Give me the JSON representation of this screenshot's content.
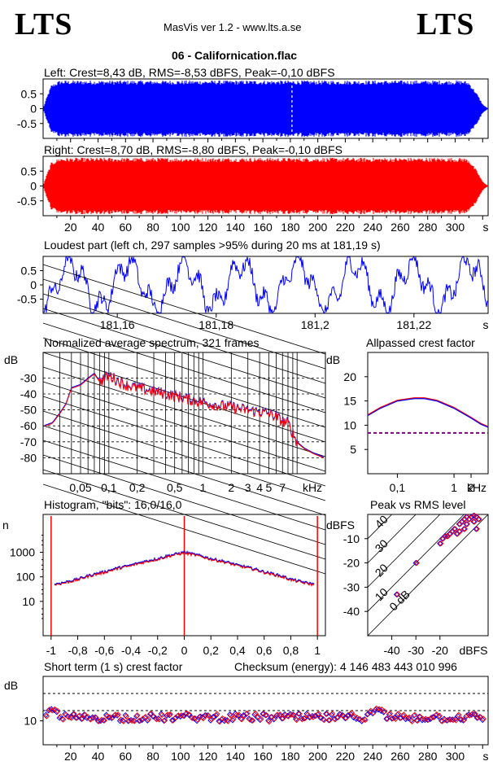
{
  "header": {
    "logo_left": "LTS",
    "logo_right": "LTS",
    "app_info": "MasVis ver 1.2 - www.lts.a.se",
    "track_title": "06 - Californication.flac"
  },
  "colors": {
    "left": "#0000ff",
    "right": "#ff0000",
    "axis": "#000000",
    "purple": "#800080"
  },
  "chart_data": [
    {
      "id": "left-waveform",
      "type": "area",
      "title": "Left: Crest=8,43 dB, RMS=-8,53 dBFS, Peak=-0,10 dBFS",
      "yticks": [
        "0.5",
        "0",
        "-0.5"
      ],
      "ylim": [
        -1,
        1
      ],
      "xlim": [
        0,
        324
      ],
      "duration_s": 324,
      "marker_s": 181.19,
      "envelope": {
        "x": [
          0,
          2,
          6,
          12,
          240,
          250,
          300,
          306,
          310,
          316,
          320,
          324
        ],
        "y": [
          0,
          0.3,
          0.8,
          0.95,
          0.95,
          0.95,
          0.95,
          0.95,
          0.9,
          0.5,
          0.15,
          0
        ]
      }
    },
    {
      "id": "right-waveform",
      "type": "area",
      "title": "Right: Crest=8,70 dB, RMS=-8,80 dBFS, Peak=-0,10 dBFS",
      "yticks": [
        "0.5",
        "0",
        "-0.5"
      ],
      "ylim": [
        -1,
        1
      ],
      "xlim": [
        0,
        324
      ],
      "xticks": [
        "20",
        "40",
        "60",
        "80",
        "100",
        "120",
        "140",
        "160",
        "180",
        "200",
        "220",
        "240",
        "260",
        "280",
        "300"
      ],
      "xunit": "s",
      "envelope": {
        "x": [
          0,
          2,
          6,
          12,
          240,
          250,
          300,
          306,
          310,
          316,
          320,
          324
        ],
        "y": [
          0,
          0.3,
          0.8,
          0.95,
          0.95,
          0.95,
          0.95,
          0.95,
          0.9,
          0.5,
          0.15,
          0
        ]
      }
    },
    {
      "id": "loudest-part",
      "type": "line",
      "title": "Loudest part (left  ch, 297 samples >95% during 20 ms at 181,19 s)",
      "yticks": [
        "0.5",
        "0",
        "-0.5"
      ],
      "ylim": [
        -1,
        1
      ],
      "xlim": [
        181.145,
        181.235
      ],
      "xticks": [
        "181,16",
        "181,18",
        "181,2",
        "181,22"
      ],
      "xunit": "s"
    },
    {
      "id": "spectrum",
      "type": "line",
      "title": "Normalized average spectrum, 321 frames",
      "ylabel": "dB",
      "yticks": [
        "-30",
        "-40",
        "-50",
        "-60",
        "-70",
        "-80"
      ],
      "xticks": [
        "0,05",
        "0,1",
        "0,2",
        "0,5",
        "1",
        "2",
        "3",
        "4",
        "5",
        "7"
      ],
      "xunit": "kHz",
      "ylim": [
        -90,
        -14
      ],
      "xlim": [
        0.02,
        20
      ],
      "series": [
        {
          "x": [
            0.02,
            0.025,
            0.03,
            0.035,
            0.04,
            0.05,
            0.06,
            0.07,
            0.08,
            0.1,
            0.12,
            0.15,
            0.2,
            0.3,
            0.5,
            0.7,
            1,
            1.5,
            2,
            3,
            4,
            5,
            6,
            7,
            8,
            10,
            12,
            15,
            20
          ],
          "y": [
            -60,
            -58,
            -52,
            -46,
            -36,
            -34,
            -30,
            -27,
            -32,
            -28,
            -31,
            -34,
            -36,
            -38,
            -41,
            -43,
            -45,
            -47,
            -48,
            -50,
            -51,
            -52,
            -54,
            -57,
            -58,
            -70,
            -74,
            -77,
            -80
          ]
        }
      ]
    },
    {
      "id": "crest-factor",
      "type": "line",
      "title": "Allpassed crest factor",
      "ylabel": "dB",
      "yticks": [
        "20",
        "15",
        "10",
        "5"
      ],
      "ylim": [
        0,
        25
      ],
      "xticks": [
        "0,1",
        "1",
        "2"
      ],
      "xunit": "kHz",
      "xlim": [
        0.03,
        4
      ],
      "reference_db": 8.4,
      "series": [
        {
          "x": [
            0.03,
            0.05,
            0.1,
            0.2,
            0.3,
            0.5,
            1,
            2,
            3,
            4
          ],
          "y": [
            12,
            13.5,
            15,
            15.5,
            15.5,
            15,
            13.5,
            11.5,
            10.2,
            9.6
          ]
        }
      ]
    },
    {
      "id": "histogram",
      "type": "line",
      "title": "Histogram, \"bits\": 16,0/16,0",
      "ylabel": "n",
      "yticks": [
        "1000",
        "100",
        "10"
      ],
      "xticks": [
        "-1",
        "-0,8",
        "-0,6",
        "-0,4",
        "-0,2",
        "0",
        "0,2",
        "0,4",
        "0,6",
        "0,8",
        "1"
      ],
      "xlim": [
        -1.06,
        1.06
      ],
      "series": [
        {
          "x": [
            -0.98,
            -0.9,
            -0.8,
            -0.6,
            -0.4,
            -0.2,
            0,
            0.2,
            0.4,
            0.6,
            0.8,
            0.9,
            0.98
          ],
          "y": [
            50,
            60,
            80,
            160,
            300,
            550,
            1000,
            550,
            300,
            160,
            80,
            60,
            50
          ]
        }
      ]
    },
    {
      "id": "peak-vs-rms",
      "type": "scatter",
      "title": "Peak vs RMS level",
      "ylabel": "dBFS",
      "xunit": "dBFS",
      "yticks": [
        "-10",
        "-20",
        "-30",
        "-40"
      ],
      "xticks": [
        "-40",
        "-30",
        "-20"
      ],
      "xlim": [
        -50,
        0
      ],
      "ylim": [
        -50,
        0
      ],
      "diag_labels": [
        "40",
        "30",
        "20",
        "10",
        "0 dB"
      ],
      "points": [
        {
          "x": -7,
          "y": -1
        },
        {
          "x": -6,
          "y": -0.5
        },
        {
          "x": -5,
          "y": -1
        },
        {
          "x": -8,
          "y": -2
        },
        {
          "x": -9,
          "y": -1
        },
        {
          "x": -10,
          "y": -2
        },
        {
          "x": -11,
          "y": -3
        },
        {
          "x": -12,
          "y": -4
        },
        {
          "x": -14,
          "y": -6
        },
        {
          "x": -15,
          "y": -7
        },
        {
          "x": -16,
          "y": -8
        },
        {
          "x": -17,
          "y": -9
        },
        {
          "x": -18,
          "y": -9
        },
        {
          "x": -19,
          "y": -10
        },
        {
          "x": -20,
          "y": -12
        },
        {
          "x": -9,
          "y": -4
        },
        {
          "x": -10,
          "y": -6
        },
        {
          "x": -12,
          "y": -7
        },
        {
          "x": -6,
          "y": -3
        },
        {
          "x": -5,
          "y": -6
        },
        {
          "x": -4,
          "y": -2
        },
        {
          "x": -13,
          "y": -8
        },
        {
          "x": -30,
          "y": -20
        },
        {
          "x": -38,
          "y": -33
        }
      ]
    },
    {
      "id": "short-term-crest",
      "type": "scatter",
      "title": "Short term (1 s) crest factor",
      "checksum": "Checksum (energy):  4 146 483 443 010 996",
      "ylabel": "dB",
      "yticks": [
        "10"
      ],
      "ylim": [
        0,
        20
      ],
      "xlim": [
        0,
        324
      ],
      "xticks": [
        "20",
        "40",
        "60",
        "80",
        "100",
        "120",
        "140",
        "160",
        "180",
        "200",
        "220",
        "240",
        "260",
        "280",
        "300"
      ],
      "xunit": "s",
      "dashed_levels_db": [
        15,
        10
      ]
    }
  ]
}
